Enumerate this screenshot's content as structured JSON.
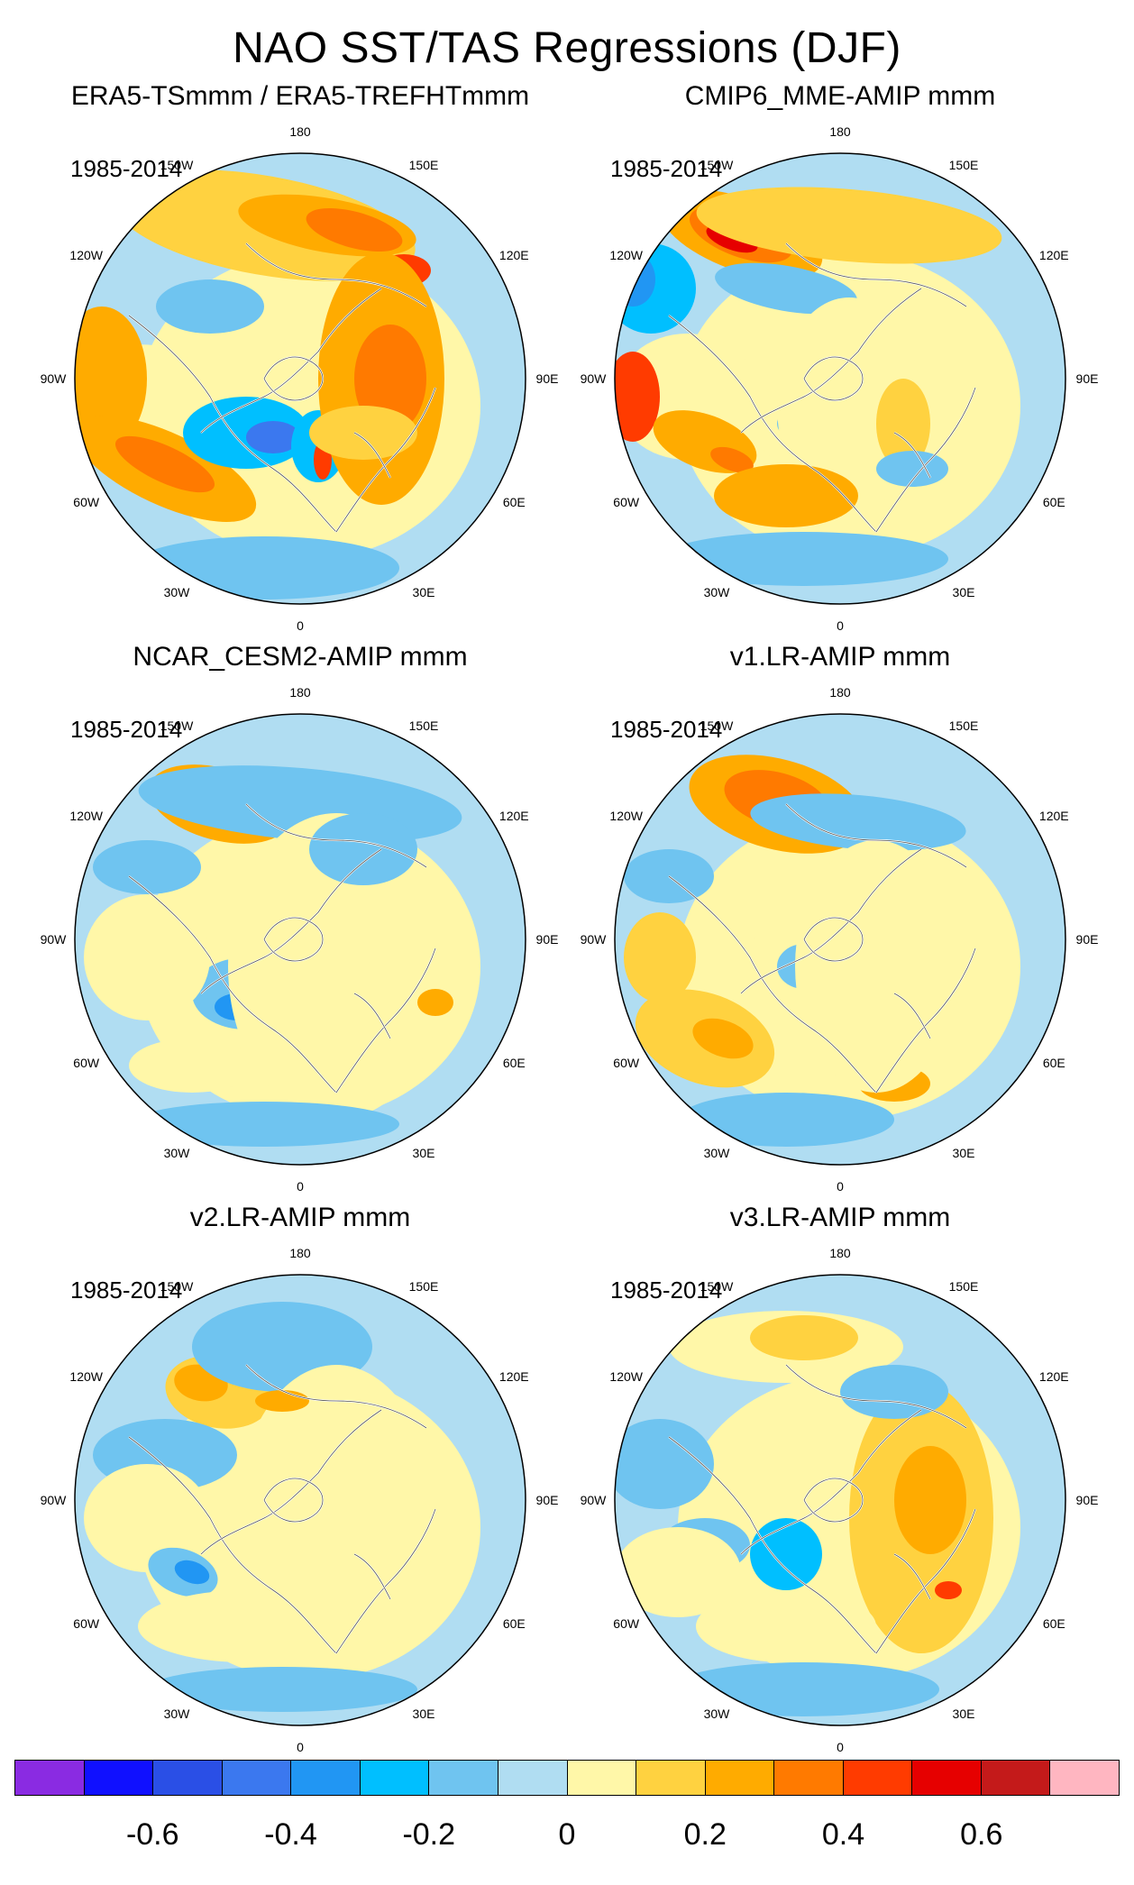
{
  "title": "NAO SST/TAS Regressions (DJF)",
  "panels": [
    {
      "title": "ERA5-TSmmm / ERA5-TREFHTmmm",
      "period": "1985-2014",
      "pattern": "era5"
    },
    {
      "title": "CMIP6_MME-AMIP  mmm",
      "period": "1985-2014",
      "pattern": "cmip6"
    },
    {
      "title": "NCAR_CESM2-AMIP  mmm",
      "period": "1985-2014",
      "pattern": "cesm2"
    },
    {
      "title": "v1.LR-AMIP  mmm",
      "period": "1985-2014",
      "pattern": "v1"
    },
    {
      "title": "v2.LR-AMIP  mmm",
      "period": "1985-2014",
      "pattern": "v2"
    },
    {
      "title": "v3.LR-AMIP  mmm",
      "period": "1985-2014",
      "pattern": "v3"
    }
  ],
  "lon_labels": [
    "180",
    "150E",
    "120E",
    "90E",
    "60E",
    "30E",
    "0",
    "30W",
    "60W",
    "90W",
    "120W",
    "150W"
  ],
  "colorbar": {
    "colors": [
      "#8a2be2",
      "#1010ff",
      "#2a4fe6",
      "#3b78ef",
      "#2196f3",
      "#00bfff",
      "#6fc4f0",
      "#b0ddf2",
      "#fff7a8",
      "#ffd240",
      "#ffab00",
      "#ff7a00",
      "#ff3b00",
      "#e60000",
      "#c41a1a",
      "#ffb6c1"
    ],
    "ticks": [
      "-0.6",
      "-0.4",
      "-0.2",
      "0",
      "0.2",
      "0.4",
      "0.6"
    ],
    "tick_values": [
      -0.6,
      -0.4,
      -0.2,
      0,
      0.2,
      0.4,
      0.6
    ],
    "min": -0.8,
    "max": 0.8,
    "step": 0.1
  },
  "background_color": "#b0ddf2",
  "land_outline_color": "#ffffff"
}
